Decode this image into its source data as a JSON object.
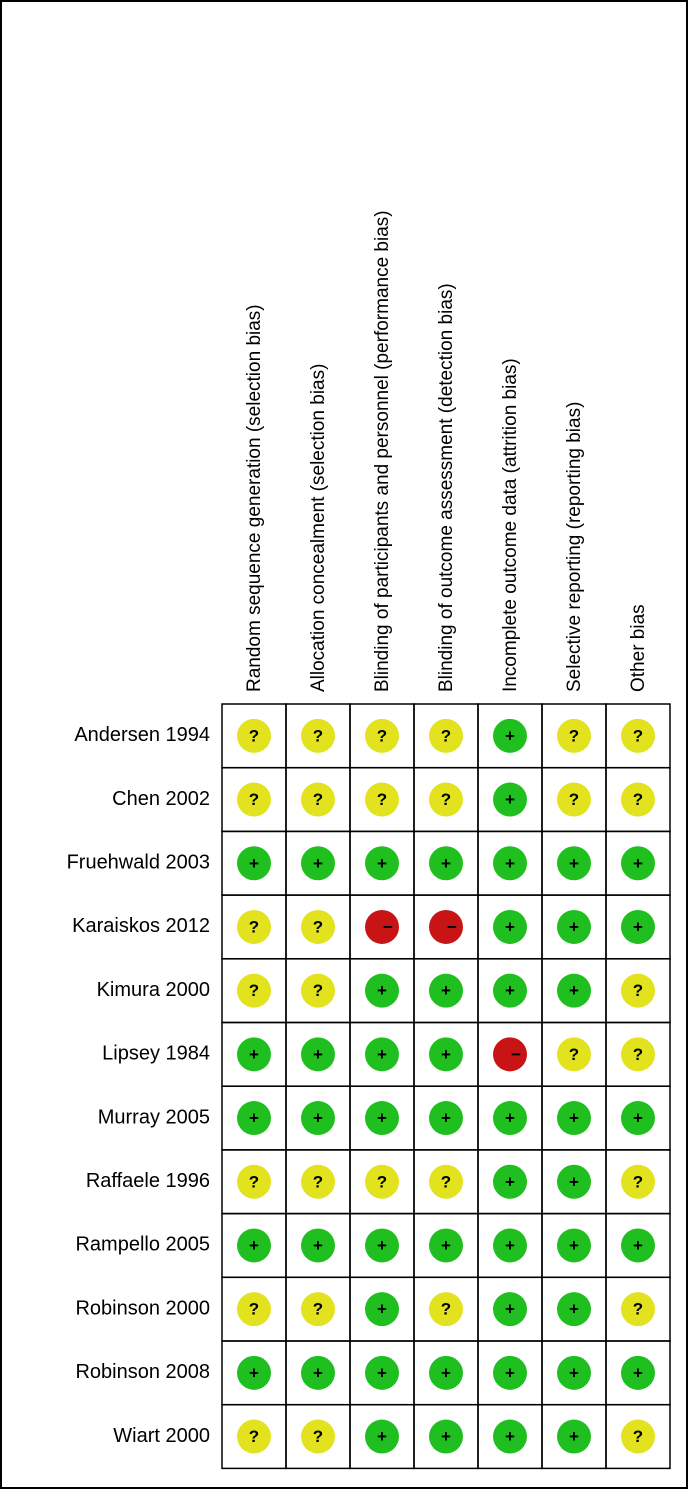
{
  "columns": [
    "Random sequence generation (selection bias)",
    "Allocation concealment (selection bias)",
    "Blinding of participants and personnel (performance bias)",
    "Blinding of outcome assessment (detection bias)",
    "Incomplete outcome data (attrition bias)",
    "Selective reporting (reporting bias)",
    "Other bias"
  ],
  "rows": [
    {
      "study": "Andersen 1994",
      "judgments": [
        "?",
        "?",
        "?",
        "?",
        "+",
        "?",
        "?"
      ]
    },
    {
      "study": "Chen 2002",
      "judgments": [
        "?",
        "?",
        "?",
        "?",
        "+",
        "?",
        "?"
      ]
    },
    {
      "study": "Fruehwald 2003",
      "judgments": [
        "+",
        "+",
        "+",
        "+",
        "+",
        "+",
        "+"
      ]
    },
    {
      "study": "Karaiskos 2012",
      "judgments": [
        "?",
        "?",
        "−",
        "−",
        "+",
        "+",
        "+"
      ]
    },
    {
      "study": "Kimura 2000",
      "judgments": [
        "?",
        "?",
        "+",
        "+",
        "+",
        "+",
        "?"
      ]
    },
    {
      "study": "Lipsey 1984",
      "judgments": [
        "+",
        "+",
        "+",
        "+",
        "−",
        "?",
        "?"
      ]
    },
    {
      "study": "Murray 2005",
      "judgments": [
        "+",
        "+",
        "+",
        "+",
        "+",
        "+",
        "+"
      ]
    },
    {
      "study": "Raffaele 1996",
      "judgments": [
        "?",
        "?",
        "?",
        "?",
        "+",
        "+",
        "?"
      ]
    },
    {
      "study": "Rampello 2005",
      "judgments": [
        "+",
        "+",
        "+",
        "+",
        "+",
        "+",
        "+"
      ]
    },
    {
      "study": "Robinson 2000",
      "judgments": [
        "?",
        "?",
        "+",
        "?",
        "+",
        "+",
        "?"
      ]
    },
    {
      "study": "Robinson 2008",
      "judgments": [
        "+",
        "+",
        "+",
        "+",
        "+",
        "+",
        "+"
      ]
    },
    {
      "study": "Wiart 2000",
      "judgments": [
        "?",
        "?",
        "+",
        "+",
        "+",
        "+",
        "?"
      ]
    }
  ]
}
